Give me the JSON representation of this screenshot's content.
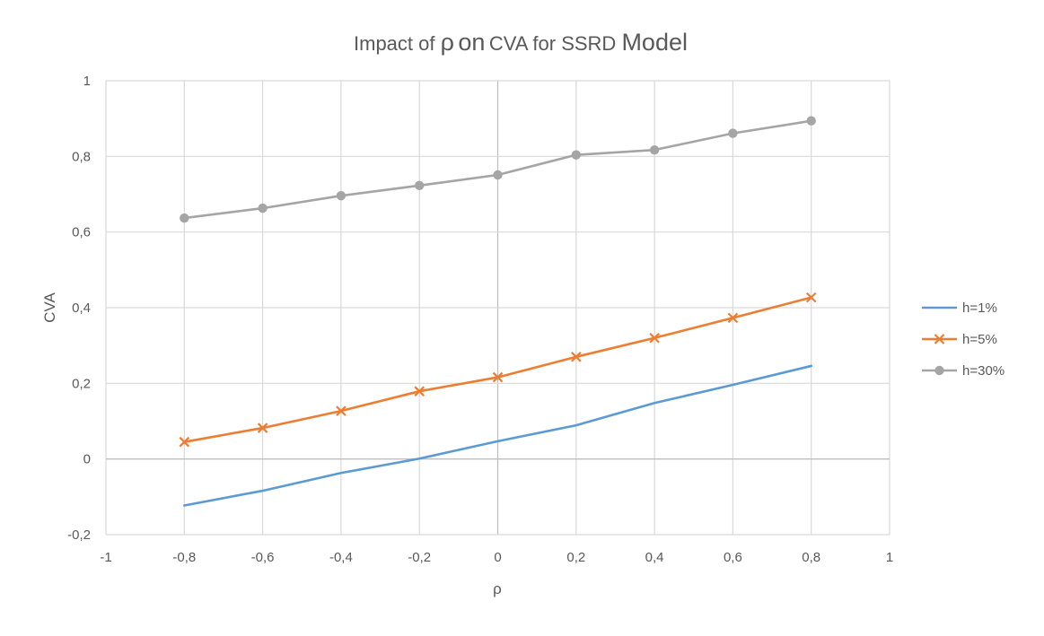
{
  "chart_data": {
    "type": "line",
    "title": "Impact of ρ on CVA for SSRD Model",
    "title_parts": [
      "Impact of ",
      "ρ",
      " on",
      " CVA for SSRD ",
      "Model"
    ],
    "xlabel": "ρ",
    "ylabel": "CVA",
    "xlim": [
      -1,
      1
    ],
    "ylim": [
      -0.2,
      1
    ],
    "x_ticks": [
      -1,
      -0.8,
      -0.6,
      -0.4,
      -0.2,
      0,
      0.2,
      0.4,
      0.6,
      0.8,
      1
    ],
    "x_tick_labels": [
      "-1",
      "-0,8",
      "-0,6",
      "-0,4",
      "-0,2",
      "0",
      "0,2",
      "0,4",
      "0,6",
      "0,8",
      "1"
    ],
    "y_ticks": [
      -0.2,
      0,
      0.2,
      0.4,
      0.6,
      0.8,
      1
    ],
    "y_tick_labels": [
      "-0,2",
      "0",
      "0,2",
      "0,4",
      "0,6",
      "0,8",
      "1"
    ],
    "grid": true,
    "legend_position": "right",
    "x": [
      -0.8,
      -0.6,
      -0.4,
      -0.2,
      0,
      0.2,
      0.4,
      0.6,
      0.8
    ],
    "series": [
      {
        "name": "h=1%",
        "color": "#5b9bd5",
        "marker": "none",
        "values": [
          -0.123,
          -0.084,
          -0.037,
          0.001,
          0.047,
          0.089,
          0.148,
          0.196,
          0.246
        ]
      },
      {
        "name": "h=5%",
        "color": "#ed7d31",
        "marker": "x",
        "values": [
          0.045,
          0.082,
          0.127,
          0.179,
          0.216,
          0.27,
          0.32,
          0.373,
          0.427
        ]
      },
      {
        "name": "h=30%",
        "color": "#a5a5a5",
        "marker": "circle",
        "values": [
          0.637,
          0.663,
          0.696,
          0.723,
          0.751,
          0.804,
          0.817,
          0.861,
          0.894
        ]
      }
    ]
  }
}
